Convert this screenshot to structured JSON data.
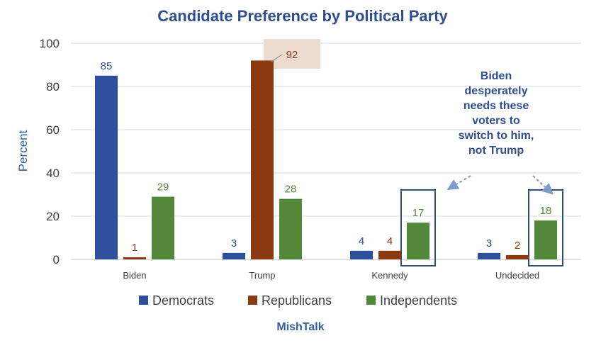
{
  "chart_data": {
    "type": "bar",
    "title": "Candidate Preference by Political Party",
    "ylabel": "Percent",
    "xlabel": "",
    "ylim": [
      0,
      100
    ],
    "yticks": [
      0,
      20,
      40,
      60,
      80,
      100
    ],
    "grid": true,
    "legend_position": "bottom",
    "categories": [
      "Biden",
      "Trump",
      "Kennedy",
      "Undecided"
    ],
    "series": [
      {
        "name": "Democrats",
        "color": "#2e4f9a",
        "label_color": "#2e4f9a",
        "values": [
          85,
          3,
          4,
          3
        ]
      },
      {
        "name": "Republicans",
        "color": "#8b3a10",
        "label_color": "#8b3a10",
        "values": [
          1,
          92,
          4,
          2
        ]
      },
      {
        "name": "Independents",
        "color": "#53883a",
        "label_color": "#53883a",
        "values": [
          29,
          28,
          17,
          18
        ]
      }
    ],
    "annotation": {
      "lines": [
        "Biden",
        "desperately",
        "needs these",
        "voters to",
        "switch to him,",
        "not Trump"
      ]
    },
    "source": "MishTalk"
  }
}
